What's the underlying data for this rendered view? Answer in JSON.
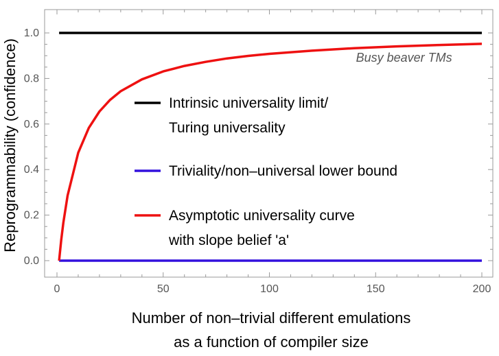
{
  "chart_data": {
    "type": "line",
    "title": "",
    "xlabel_lines": [
      "Number of non–trivial different emulations",
      "as a function of compiler size"
    ],
    "ylabel": "Reprogrammability (confidence)",
    "xlim": [
      0,
      200
    ],
    "ylim": [
      0,
      1.0
    ],
    "xticks": [
      0,
      50,
      100,
      150,
      200
    ],
    "yticks": [
      0.0,
      0.2,
      0.4,
      0.6,
      0.8,
      1.0
    ],
    "xtick_labels": [
      "0",
      "50",
      "100",
      "150",
      "200"
    ],
    "ytick_labels": [
      "0.0",
      "0.2",
      "0.4",
      "0.6",
      "0.8",
      "1.0"
    ],
    "grid": false,
    "legend_position": "center-right",
    "series": [
      {
        "name_lines": [
          "Intrinsic universality limit/",
          "Turing universality"
        ],
        "color": "#000000",
        "x": [
          1,
          200
        ],
        "y": [
          1.0,
          1.0
        ]
      },
      {
        "name_lines": [
          "Triviality/non–universal lower bound"
        ],
        "color": "#3311dd",
        "x": [
          1,
          200
        ],
        "y": [
          0.0,
          0.0
        ]
      },
      {
        "name_lines": [
          "Asymptotic universality curve",
          "with slope belief 'a'"
        ],
        "color": "#ee1111",
        "x": [
          1,
          2,
          3,
          5,
          10,
          15,
          20,
          25,
          30,
          40,
          50,
          60,
          70,
          80,
          90,
          100,
          120,
          140,
          160,
          180,
          200
        ],
        "y": [
          0.0,
          0.091,
          0.167,
          0.286,
          0.474,
          0.583,
          0.655,
          0.706,
          0.744,
          0.796,
          0.831,
          0.855,
          0.873,
          0.888,
          0.899,
          0.908,
          0.922,
          0.933,
          0.941,
          0.947,
          0.952
        ]
      }
    ],
    "annotations": [
      {
        "text": "Busy beaver TMs",
        "x": 186,
        "y": 0.94
      }
    ]
  }
}
